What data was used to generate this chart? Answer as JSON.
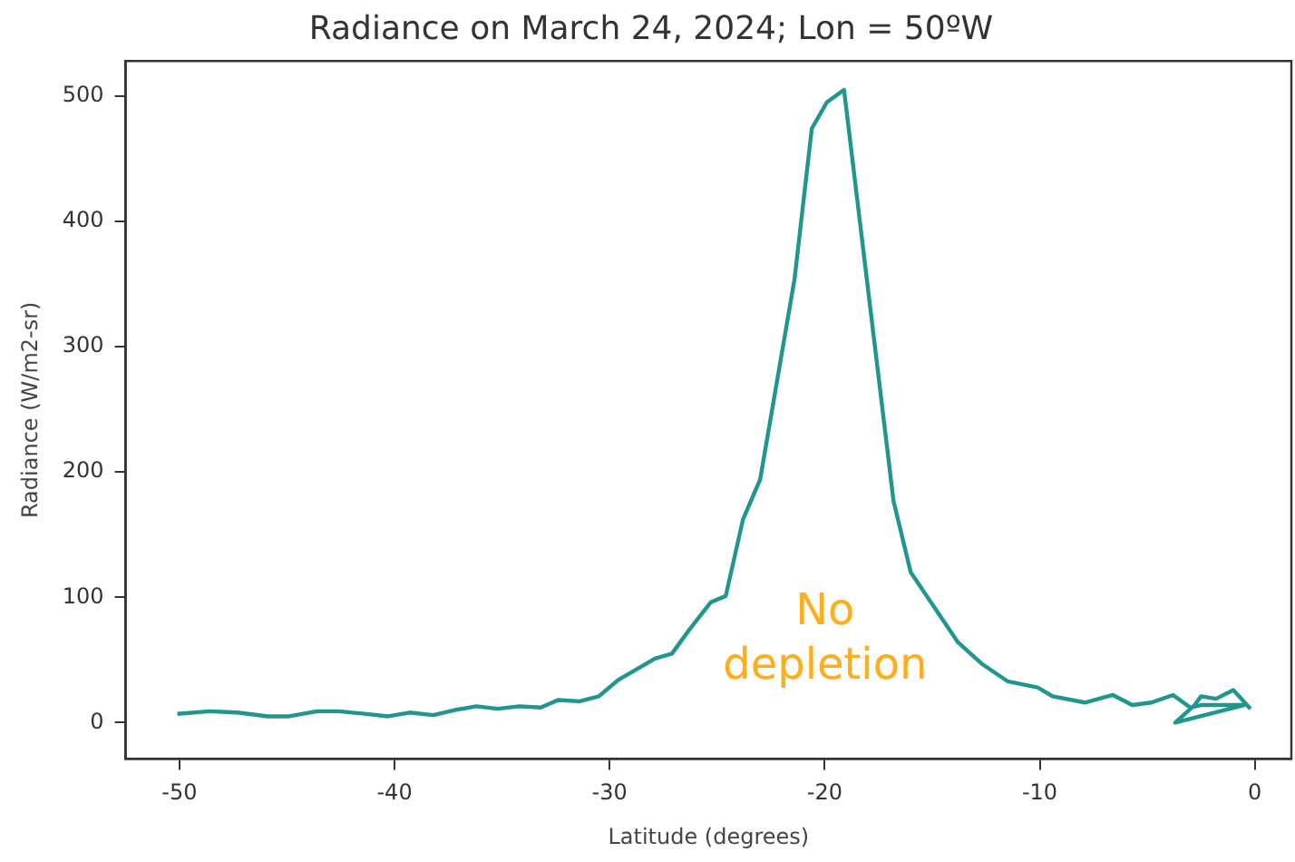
{
  "chart_data": {
    "type": "line",
    "title": "Radiance on March 24, 2024; Lon = 50ºW",
    "xlabel": "Latitude (degrees)",
    "ylabel": "Radiance (W/m2-sr)",
    "series": [
      {
        "color": "#1f968e",
        "x": [
          -50.1,
          -48.6,
          -47.3,
          -45.9,
          -44.9,
          -43.6,
          -42.6,
          -41.4,
          -40.3,
          -39.3,
          -38.2,
          -37.2,
          -36.2,
          -35.2,
          -34.2,
          -33.2,
          -32.4,
          -31.4,
          -30.5,
          -29.6,
          -28.8,
          -27.9,
          -27.1,
          -26.3,
          -25.3,
          -24.6,
          -23.8,
          -23.0,
          -21.4,
          -20.6,
          -19.9,
          -19.1,
          -16.8,
          -16.0,
          -13.8,
          -12.7,
          -11.5,
          -10.1,
          -9.4,
          -7.9,
          -6.6,
          -5.7,
          -4.8,
          -3.8,
          -3.0,
          -2.5,
          -0.5,
          -3.7,
          -2.8,
          -2.5,
          -1.8,
          -1.0,
          -0.2
        ],
        "values": [
          7,
          9,
          8,
          5,
          5,
          9,
          9,
          7,
          5,
          8,
          6,
          10,
          13,
          11,
          13,
          12,
          18,
          17,
          21,
          34,
          42,
          51,
          55,
          74,
          96,
          101,
          162,
          194,
          354,
          474,
          495,
          505,
          177,
          120,
          64,
          47,
          33,
          28,
          21,
          16,
          22,
          14,
          16,
          22,
          12,
          14,
          14,
          0,
          14,
          21,
          19,
          26,
          11
        ]
      }
    ],
    "xlim": [
      -52.5,
      1.7
    ],
    "ylim": [
      -29,
      528
    ],
    "xticks": [
      -50,
      -40,
      -30,
      -20,
      -10,
      0
    ],
    "yticks": [
      0,
      100,
      200,
      300,
      400,
      500
    ],
    "grid": false,
    "legend": false,
    "marker": "none",
    "line_style": "solid",
    "annotations": [
      "No\ndepletion"
    ]
  }
}
